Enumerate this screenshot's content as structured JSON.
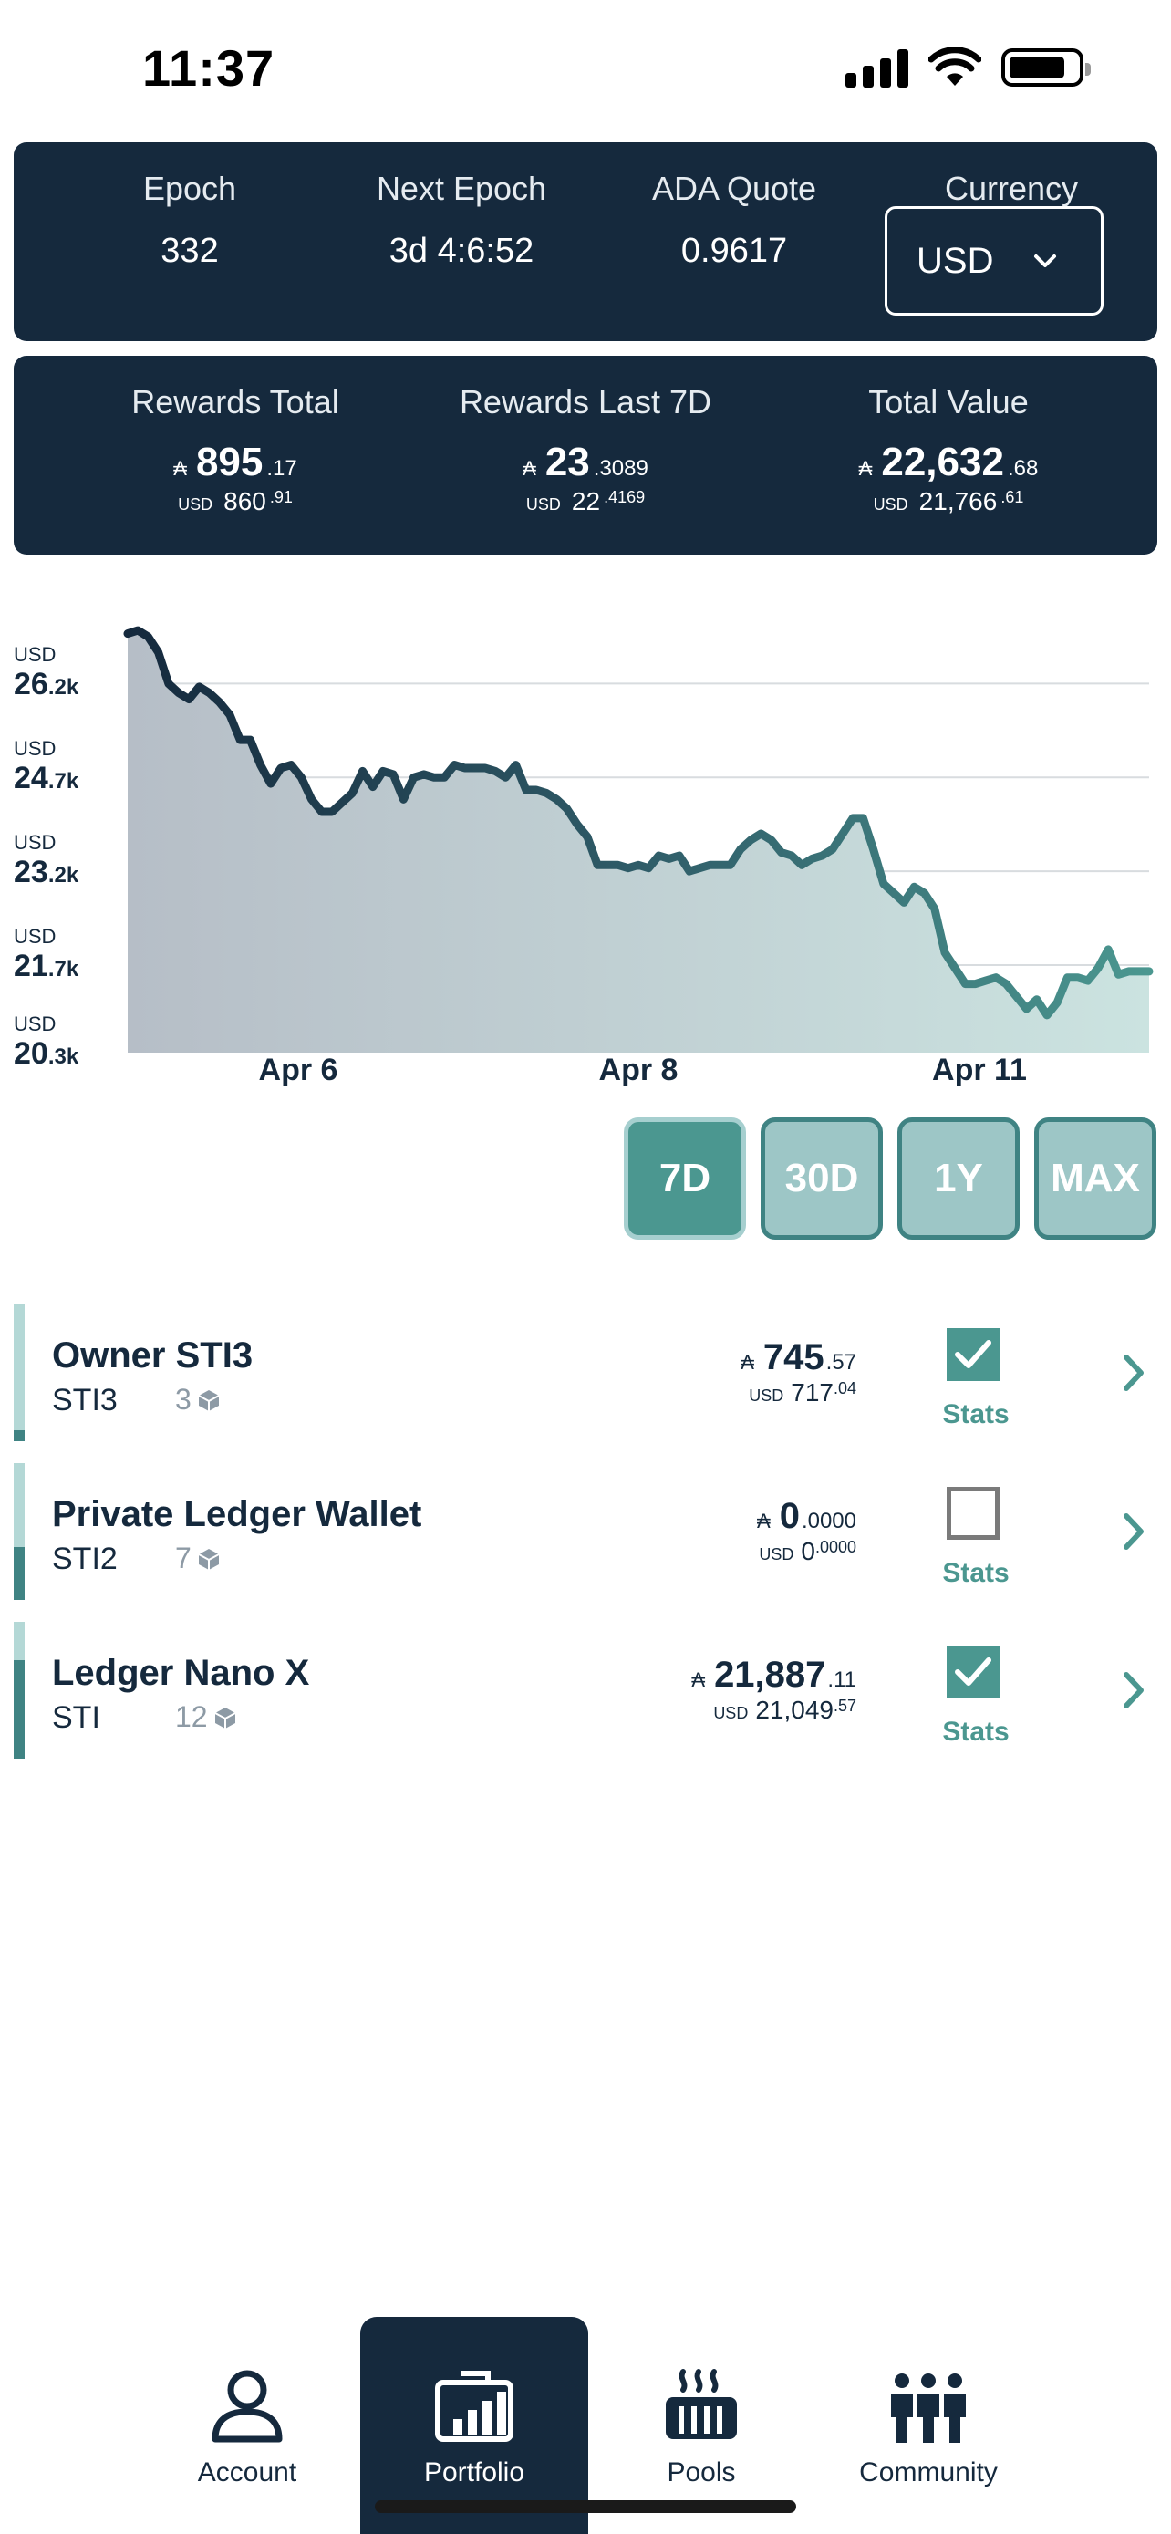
{
  "status_bar": {
    "time": "11:37"
  },
  "epoch_panel": {
    "epoch_label": "Epoch",
    "epoch_value": "332",
    "next_epoch_label": "Next Epoch",
    "next_epoch_value": "3d 4:6:52",
    "ada_quote_label": "ADA Quote",
    "ada_quote_value": "0.9617",
    "currency_label": "Currency",
    "currency_value": "USD"
  },
  "rewards_panel": {
    "ada_symbol": "₳",
    "usd_label": "USD",
    "rewards_total": {
      "label": "Rewards Total",
      "ada_int": "895",
      "ada_dec": ".17",
      "usd_int": "860",
      "usd_dec": ".91"
    },
    "rewards_7d": {
      "label": "Rewards Last 7D",
      "ada_int": "23",
      "ada_dec": ".3089",
      "usd_int": "22",
      "usd_dec": ".4169"
    },
    "total_value": {
      "label": "Total Value",
      "ada_int": "22,632",
      "ada_dec": ".68",
      "usd_int": "21,766",
      "usd_dec": ".61"
    }
  },
  "chart_data": {
    "type": "area",
    "x_tick_labels": [
      "Apr 6",
      "Apr 8",
      "Apr 11"
    ],
    "y_ticks": [
      {
        "unit": "USD",
        "int": "26",
        "suffix": ".2k",
        "value": 26200
      },
      {
        "unit": "USD",
        "int": "24",
        "suffix": ".7k",
        "value": 24700
      },
      {
        "unit": "USD",
        "int": "23",
        "suffix": ".2k",
        "value": 23200
      },
      {
        "unit": "USD",
        "int": "21",
        "suffix": ".7k",
        "value": 21700
      },
      {
        "unit": "USD",
        "int": "20",
        "suffix": ".3k",
        "value": 20300
      }
    ],
    "ylim": [
      20300,
      27300
    ],
    "grid": true,
    "series": [
      {
        "values": [
          27000,
          27050,
          26950,
          26700,
          26200,
          26050,
          25950,
          26150,
          26050,
          25900,
          25700,
          25300,
          25300,
          24900,
          24600,
          24850,
          24900,
          24700,
          24350,
          24150,
          24150,
          24300,
          24450,
          24800,
          24550,
          24800,
          24750,
          24350,
          24700,
          24750,
          24700,
          24700,
          24900,
          24850,
          24850,
          24850,
          24800,
          24700,
          24900,
          24500,
          24500,
          24450,
          24350,
          24200,
          23950,
          23750,
          23300,
          23300,
          23300,
          23250,
          23300,
          23250,
          23450,
          23400,
          23450,
          23200,
          23250,
          23300,
          23300,
          23300,
          23550,
          23700,
          23800,
          23700,
          23500,
          23450,
          23300,
          23400,
          23450,
          23550,
          23800,
          24050,
          24050,
          23550,
          23000,
          22850,
          22700,
          22950,
          22850,
          22600,
          21900,
          21650,
          21400,
          21400,
          21450,
          21500,
          21400,
          21200,
          21000,
          21150,
          20900,
          21100,
          21500,
          21500,
          21450,
          21650,
          21950,
          21550,
          21600,
          21600,
          21600
        ]
      }
    ]
  },
  "ranges": [
    "7D",
    "30D",
    "1Y",
    "MAX"
  ],
  "wallets": [
    {
      "name": "Owner STI3",
      "ticker": "STI3",
      "count": "3",
      "ada_int": "745",
      "ada_dec": ".57",
      "usd_int": "717",
      "usd_dec": ".04",
      "checked": true,
      "stats_label": "Stats"
    },
    {
      "name": "Private Ledger Wallet",
      "ticker": "STI2",
      "count": "7",
      "ada_int": "0",
      "ada_dec": ".0000",
      "usd_int": "0",
      "usd_dec": ".0000",
      "checked": false,
      "stats_label": "Stats"
    },
    {
      "name": "Ledger Nano X",
      "ticker": "STI",
      "count": "12",
      "ada_int": "21,887",
      "ada_dec": ".11",
      "usd_int": "21,049",
      "usd_dec": ".57",
      "checked": true,
      "stats_label": "Stats"
    }
  ],
  "tabs": [
    {
      "label": "Account",
      "icon": "account-icon"
    },
    {
      "label": "Portfolio",
      "icon": "portfolio-icon"
    },
    {
      "label": "Pools",
      "icon": "pools-icon"
    },
    {
      "label": "Community",
      "icon": "community-icon"
    }
  ],
  "colors": {
    "navy": "#15293d",
    "teal": "#4b9790",
    "teal_light": "#9dc6c6"
  }
}
